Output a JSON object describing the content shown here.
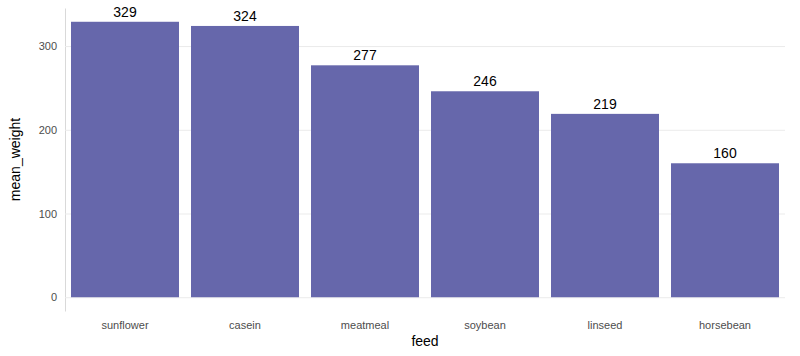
{
  "chart_data": {
    "type": "bar",
    "x_label": "feed",
    "y_label": "mean_weight",
    "categories": [
      "sunflower",
      "casein",
      "meatmeal",
      "soybean",
      "linseed",
      "horsebean"
    ],
    "values": [
      329,
      324,
      277,
      246,
      219,
      160
    ],
    "color": "#6667ab",
    "ylim": [
      -16.45,
      345.45
    ],
    "yticks": [
      0,
      100,
      200,
      300
    ],
    "grid": true,
    "data_labels": true
  }
}
